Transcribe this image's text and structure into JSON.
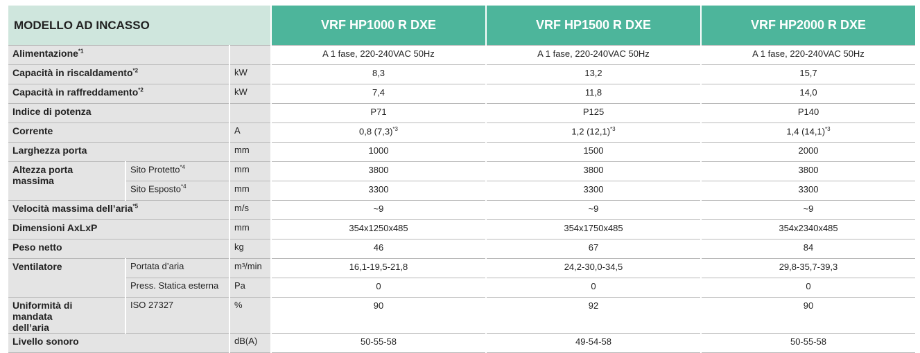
{
  "header": {
    "title": "MODELLO AD INCASSO",
    "models": [
      "VRF HP1000 R DXE",
      "VRF HP1500 R DXE",
      "VRF HP2000 R DXE"
    ]
  },
  "table": {
    "groups": [
      {
        "label": "Alimentazione",
        "note": "*1",
        "rows": [
          {
            "values": [
              "A 1 fase, 220-240VAC 50Hz",
              "A 1 fase, 220-240VAC 50Hz",
              "A 1 fase, 220-240VAC 50Hz"
            ]
          }
        ]
      },
      {
        "label": "Capacità in riscaldamento",
        "note": "*2",
        "rows": [
          {
            "unit": "kW",
            "values": [
              "8,3",
              "13,2",
              "15,7"
            ]
          }
        ]
      },
      {
        "label": "Capacità in raffreddamento",
        "note": "*2",
        "rows": [
          {
            "unit": "kW",
            "values": [
              "7,4",
              "11,8",
              "14,0"
            ]
          }
        ]
      },
      {
        "label": "Indice di potenza",
        "rows": [
          {
            "values": [
              "P71",
              "P125",
              "P140"
            ]
          }
        ]
      },
      {
        "label": "Corrente",
        "rows": [
          {
            "unit": "A",
            "values": [
              "0,8 (7,3)",
              "1,2 (12,1)",
              "1,4 (14,1)"
            ],
            "value_notes": [
              "*3",
              "*3",
              "*3"
            ]
          }
        ]
      },
      {
        "label": "Larghezza porta",
        "rows": [
          {
            "unit": "mm",
            "values": [
              "1000",
              "1500",
              "2000"
            ]
          }
        ]
      },
      {
        "label": "Altezza porta massima",
        "rows": [
          {
            "sublabel": "Sito Protetto",
            "note": "*4",
            "unit": "mm",
            "values": [
              "3800",
              "3800",
              "3800"
            ]
          },
          {
            "sublabel": "Sito Esposto",
            "note": "*4",
            "unit": "mm",
            "values": [
              "3300",
              "3300",
              "3300"
            ]
          }
        ]
      },
      {
        "label": "Velocità massima dell’aria",
        "note": "*5",
        "rows": [
          {
            "unit": "m/s",
            "values": [
              "~9",
              "~9",
              "~9"
            ]
          }
        ]
      },
      {
        "label": "Dimensioni AxLxP",
        "rows": [
          {
            "unit": "mm",
            "values": [
              "354x1250x485",
              "354x1750x485",
              "354x2340x485"
            ]
          }
        ]
      },
      {
        "label": "Peso netto",
        "rows": [
          {
            "unit": "kg",
            "values": [
              "46",
              "67",
              "84"
            ]
          }
        ]
      },
      {
        "label": "Ventilatore",
        "rows": [
          {
            "sublabel": "Portata d’aria",
            "unit": "m³/min",
            "values": [
              "16,1-19,5-21,8",
              "24,2-30,0-34,5",
              "29,8-35,7-39,3"
            ]
          },
          {
            "sublabel": "Press. Statica esterna",
            "unit": "Pa",
            "values": [
              "0",
              "0",
              "0"
            ]
          }
        ]
      },
      {
        "label": "Uniformità di mandata dell’aria",
        "rows": [
          {
            "sublabel": "ISO 27327",
            "unit": "%",
            "values": [
              "90",
              "92",
              "90"
            ]
          }
        ]
      },
      {
        "label": "Livello sonoro",
        "rows": [
          {
            "unit": "dB(A)",
            "values": [
              "50-55-58",
              "49-54-58",
              "50-55-58"
            ]
          }
        ]
      }
    ]
  }
}
